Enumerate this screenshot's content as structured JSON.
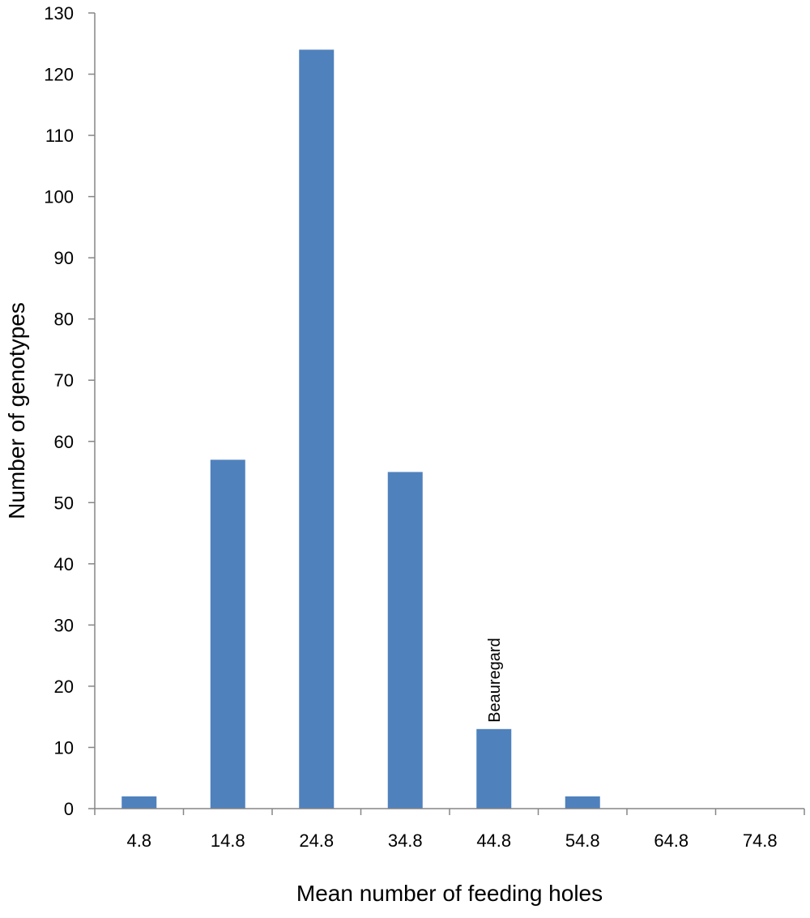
{
  "chart_data": {
    "type": "bar",
    "title": "",
    "xlabel": "Mean number of  feeding holes",
    "ylabel": "Number of genotypes",
    "categories": [
      "4.8",
      "14.8",
      "24.8",
      "34.8",
      "44.8",
      "54.8",
      "64.8",
      "74.8"
    ],
    "values": [
      2,
      57,
      124,
      55,
      13,
      2,
      0,
      0
    ],
    "ylim": [
      0,
      130
    ],
    "yticks": [
      "0",
      "10",
      "20",
      "30",
      "40",
      "50",
      "60",
      "70",
      "80",
      "90",
      "100",
      "110",
      "120",
      "130"
    ],
    "grid": false,
    "legend": "none",
    "bar_color": "#4F81BD",
    "annotations": [
      {
        "category": "44.8",
        "text": "Beauregard"
      }
    ]
  }
}
